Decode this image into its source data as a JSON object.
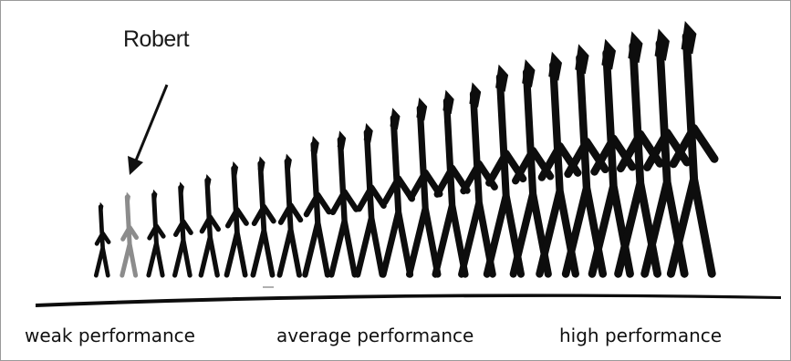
{
  "callout": {
    "name": "Robert",
    "highlight_index": 1,
    "highlight_color": "#8c8c8c"
  },
  "figure_color": "#0d0d0d",
  "figures": {
    "count": 23,
    "relative_heights": [
      0.29,
      0.33,
      0.34,
      0.37,
      0.4,
      0.45,
      0.47,
      0.48,
      0.55,
      0.57,
      0.6,
      0.66,
      0.7,
      0.73,
      0.76,
      0.83,
      0.85,
      0.88,
      0.91,
      0.93,
      0.96,
      0.97,
      1.0
    ]
  },
  "labels": {
    "weak": "weak performance",
    "average": "average performance",
    "high": "high performance"
  }
}
